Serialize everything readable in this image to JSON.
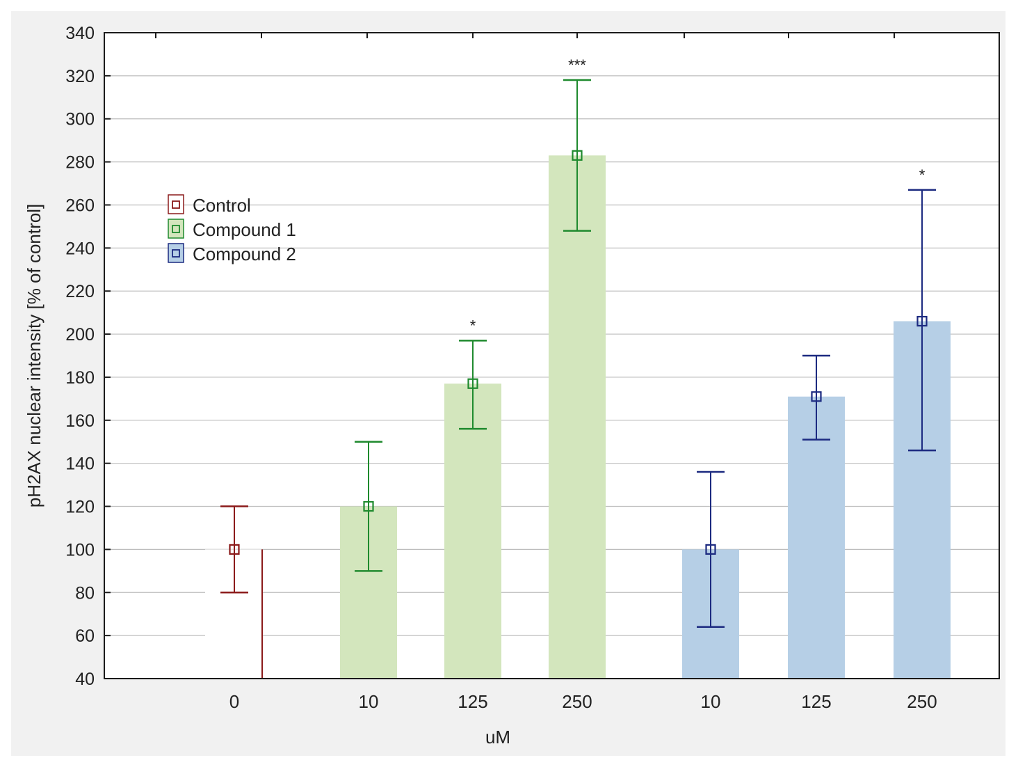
{
  "chart_data": {
    "type": "bar",
    "title": "",
    "xlabel": "uM",
    "ylabel": "pH2AX nuclear intensity [% of control]",
    "ylim": [
      40,
      340
    ],
    "yticks": [
      40,
      60,
      80,
      100,
      120,
      140,
      160,
      180,
      200,
      220,
      240,
      260,
      280,
      300,
      320,
      340
    ],
    "grid": true,
    "legend_position": "upper-left",
    "groups": [
      {
        "name": "Control",
        "color": "#8b1a1a",
        "fill": "#ffffff",
        "categories": [
          "0"
        ],
        "values": [
          100
        ],
        "err_low": [
          80
        ],
        "err_high": [
          120
        ],
        "significance": [
          ""
        ]
      },
      {
        "name": "Compound 1",
        "color": "#1f8a2e",
        "fill": "#d3e6bd",
        "categories": [
          "10",
          "125",
          "250"
        ],
        "values": [
          120,
          177,
          283
        ],
        "err_low": [
          90,
          156,
          248
        ],
        "err_high": [
          150,
          197,
          318
        ],
        "significance": [
          "",
          "*",
          "***"
        ]
      },
      {
        "name": "Compound 2",
        "color": "#1c2a80",
        "fill": "#b6cfe6",
        "categories": [
          "10",
          "125",
          "250"
        ],
        "values": [
          100,
          171,
          206
        ],
        "err_low": [
          64,
          151,
          146
        ],
        "err_high": [
          136,
          190,
          267
        ],
        "significance": [
          "",
          "",
          "*"
        ]
      }
    ]
  }
}
